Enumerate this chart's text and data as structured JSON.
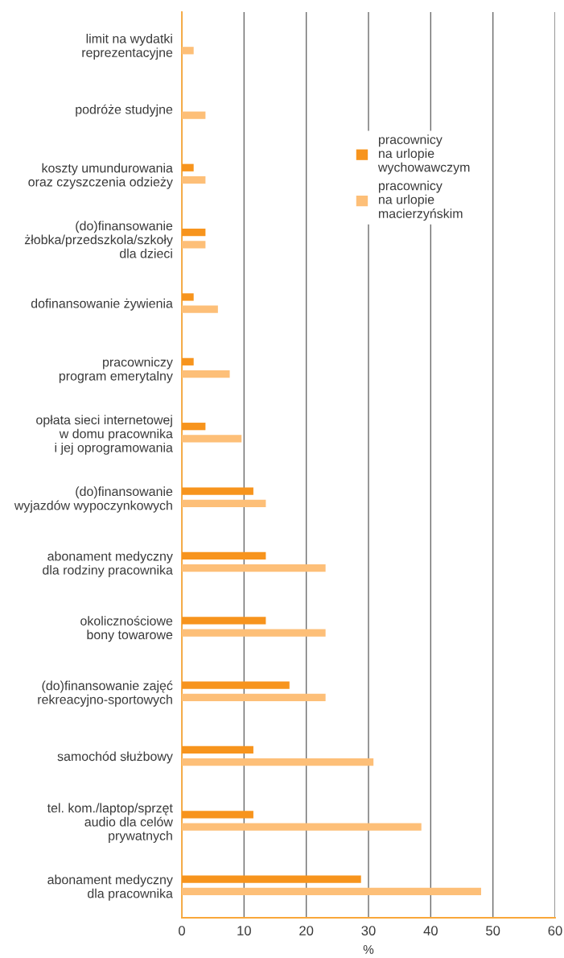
{
  "chart_data": {
    "type": "bar",
    "orientation": "horizontal",
    "categories": [
      "limit na wydatki\nreprezentacyjne",
      "podróże studyjne",
      "koszty umundurowania\noraz czyszczenia odzieży",
      "(do)finansowanie\nżłobka/przedszkola/szkoły\ndla dzieci",
      "dofinansowanie żywienia",
      "pracowniczy\nprogram emerytalny",
      "opłata sieci internetowej\nw domu pracownika\ni jej oprogramowania",
      "(do)finansowanie\nwyjazdów wypoczynkowych",
      "abonament medyczny\ndla rodziny pracownika",
      "okolicznościowe\nbony towarowe",
      "(do)finansowanie zajęć\nrekreacyjno-sportowych",
      "samochód służbowy",
      "tel. kom./laptop/sprzęt\naudio dla celów\nprywatnych",
      "abonament medyczny\ndla pracownika"
    ],
    "series": [
      {
        "name": "pracownicy\nna urlopie\nwychowawczym",
        "color": "#f7941d",
        "values": [
          null,
          null,
          1.9,
          3.8,
          1.9,
          1.9,
          3.8,
          11.5,
          13.5,
          13.5,
          17.3,
          11.5,
          11.5,
          28.8
        ]
      },
      {
        "name": "pracownicy\nna urlopie\nmacierzyńskim",
        "color": "#fdbf78",
        "values": [
          1.9,
          3.8,
          3.8,
          3.8,
          5.8,
          7.7,
          9.6,
          13.5,
          23.1,
          23.1,
          23.1,
          30.8,
          38.5,
          48.1
        ]
      }
    ],
    "xlim": [
      0,
      60
    ],
    "xticks": [
      0,
      10,
      20,
      30,
      40,
      50,
      60
    ],
    "xlabel": "%",
    "grid": "x",
    "legend": "top right"
  }
}
